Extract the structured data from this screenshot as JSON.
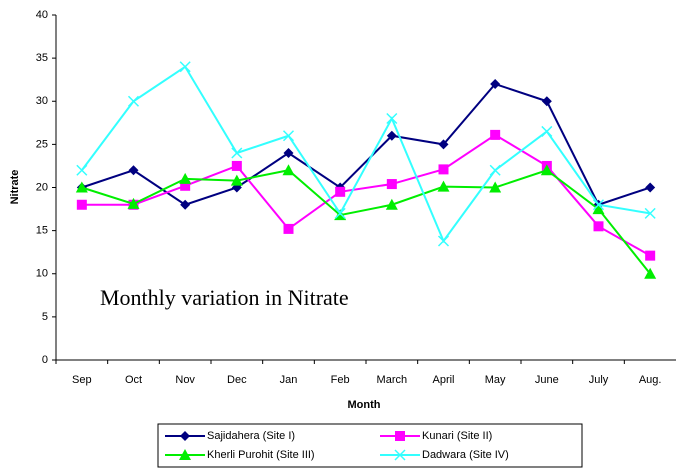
{
  "chart_data": {
    "type": "line",
    "annotation": "Monthly variation in Nitrate",
    "x_label": "Month",
    "y_label": "Nitrate",
    "categories": [
      "Sep",
      "Oct",
      "Nov",
      "Dec",
      "Jan",
      "Feb",
      "March",
      "April",
      "May",
      "June",
      "July",
      "Aug."
    ],
    "series": [
      {
        "name": "Sajidahera (Site I)",
        "color": "#000080",
        "marker": "diamond",
        "values": [
          20,
          22,
          18,
          20,
          24,
          20,
          26,
          25,
          32,
          30,
          18,
          20
        ]
      },
      {
        "name": "Kunari (Site II)",
        "color": "#ff00ff",
        "marker": "square",
        "values": [
          18,
          18,
          20.2,
          22.5,
          15.2,
          19.5,
          20.4,
          22.1,
          26.1,
          22.5,
          15.5,
          12.1
        ]
      },
      {
        "name": "Kherli Purohit (Site III)",
        "color": "#00ee00",
        "marker": "triangle",
        "values": [
          20,
          18.1,
          21,
          20.8,
          22,
          16.8,
          18,
          20.1,
          20,
          22,
          17.5,
          10
        ]
      },
      {
        "name": "Dadwara (Site IV)",
        "color": "#33ffff",
        "marker": "x",
        "values": [
          22,
          30,
          34,
          24,
          26,
          17,
          28,
          13.8,
          22,
          26.5,
          18,
          17
        ]
      }
    ],
    "ylim": [
      0,
      40
    ],
    "yticks": [
      0,
      5,
      10,
      15,
      20,
      25,
      30,
      35,
      40
    ],
    "grid": false,
    "legend": "bottom"
  }
}
